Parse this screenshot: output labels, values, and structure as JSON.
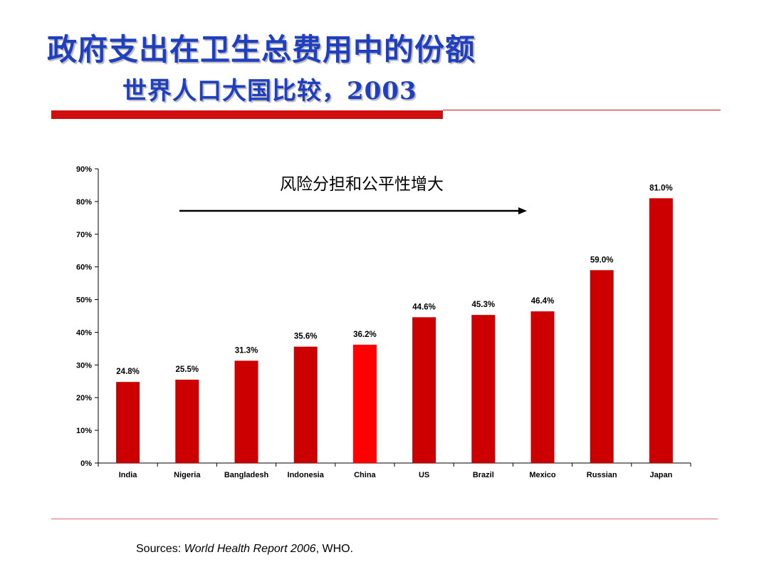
{
  "slide": {
    "title": "政府支出在卫生总费用中的份额",
    "subtitle": "世界人口大国比较，2003"
  },
  "sources": {
    "prefix": "Sources: ",
    "report": "World Health Report 2006",
    "suffix": ", WHO."
  },
  "colors": {
    "bar": "#cc0000",
    "highlight_bar": "#ff0000",
    "title": "#1f3fbf",
    "accent_rule": "#d10e0e"
  },
  "chart_data": {
    "type": "bar",
    "categories": [
      "India",
      "Nigeria",
      "Bangladesh",
      "Indonesia",
      "China",
      "US",
      "Brazil",
      "Mexico",
      "Russian",
      "Japan"
    ],
    "values": [
      24.8,
      25.5,
      31.3,
      35.6,
      36.2,
      44.6,
      45.3,
      46.4,
      59.0,
      81.0
    ],
    "value_labels": [
      "24.8%",
      "25.5%",
      "31.3%",
      "35.6%",
      "36.2%",
      "44.6%",
      "45.3%",
      "46.4%",
      "59.0%",
      "81.0%"
    ],
    "highlighted_category": "China",
    "ylim": [
      0,
      90
    ],
    "yticks": [
      0,
      10,
      20,
      30,
      40,
      50,
      60,
      70,
      80,
      90
    ],
    "ytick_labels": [
      "0%",
      "10%",
      "20%",
      "30%",
      "40%",
      "50%",
      "60%",
      "70%",
      "80%",
      "90%"
    ],
    "annotation": "风险分担和公平性增大",
    "grid": false,
    "legend": "none"
  }
}
